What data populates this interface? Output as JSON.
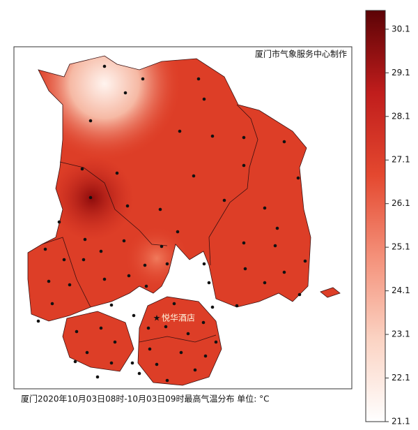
{
  "credit": "厦门市气象服务中心制作",
  "caption": "厦门2020年10月03日08时-10月03日09时最高气温分布 单位: °C",
  "place_label": "悦华酒店",
  "colorbar": {
    "range": [
      21.1,
      30.53
    ],
    "ticks": [
      30.1,
      29.1,
      28.1,
      27.1,
      26.1,
      25.1,
      24.1,
      23.1,
      22.1,
      21.1
    ],
    "colors": [
      "#ffffff",
      "#fbd3c3",
      "#f4917a",
      "#e4482f",
      "#c01d1c",
      "#5c0306"
    ]
  }
}
